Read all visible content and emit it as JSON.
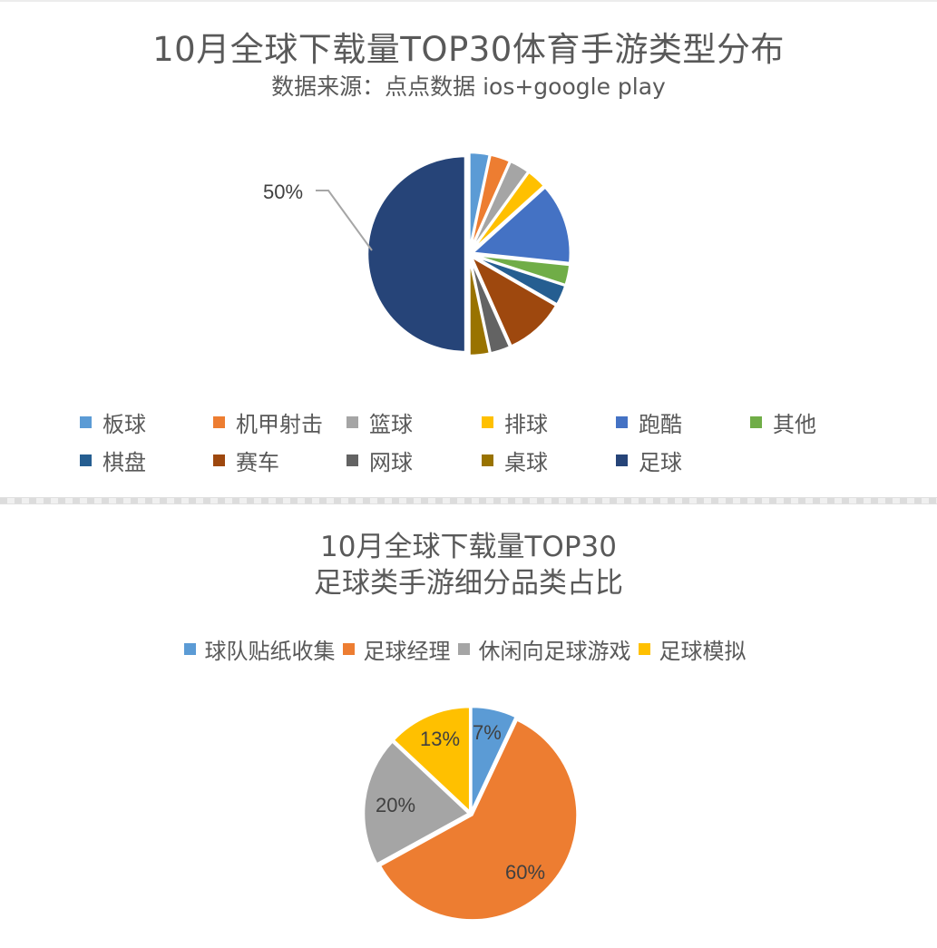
{
  "chart_data": [
    {
      "type": "pie",
      "title": "10月全球下载量TOP30体育手游类型分布",
      "subtitle": "数据来源：点点数据 ios+google play",
      "exploded": true,
      "start_angle_deg": 0,
      "direction": "clockwise",
      "categories": [
        "板球",
        "机甲射击",
        "篮球",
        "排球",
        "跑酷",
        "其他",
        "棋盘",
        "赛车",
        "网球",
        "桌球",
        "足球"
      ],
      "values": [
        3.33,
        3.33,
        3.33,
        3.33,
        13.33,
        3.33,
        3.33,
        10,
        3.33,
        3.33,
        50
      ],
      "colors": [
        "#5B9BD5",
        "#ED7D31",
        "#A5A5A5",
        "#FFC000",
        "#4472C4",
        "#70AD47",
        "#255E91",
        "#9E480E",
        "#636363",
        "#997300",
        "#264478"
      ],
      "data_labels": [
        {
          "category": "足球",
          "text": "50%"
        }
      ],
      "legend_position": "bottom"
    },
    {
      "type": "pie",
      "title": "10月全球下载量TOP30 足球类手游细分品类占比",
      "exploded": true,
      "start_angle_deg": 0,
      "direction": "clockwise",
      "categories": [
        "球队贴纸收集",
        "足球经理",
        "休闲向足球游戏",
        "足球模拟"
      ],
      "values": [
        7,
        60,
        20,
        13
      ],
      "colors": [
        "#5B9BD5",
        "#ED7D31",
        "#A5A5A5",
        "#FFC000"
      ],
      "data_labels": [
        "7%",
        "60%",
        "20%",
        "13%"
      ],
      "legend_position": "top"
    }
  ],
  "chart1": {
    "title": "10月全球下载量TOP30体育手游类型分布",
    "subtitle": "数据来源：点点数据 ios+google play",
    "callout_label": "50%",
    "legend": [
      {
        "label": "板球",
        "color": "#5B9BD5"
      },
      {
        "label": "机甲射击",
        "color": "#ED7D31"
      },
      {
        "label": "篮球",
        "color": "#A5A5A5"
      },
      {
        "label": "排球",
        "color": "#FFC000"
      },
      {
        "label": "跑酷",
        "color": "#4472C4"
      },
      {
        "label": "其他",
        "color": "#70AD47"
      },
      {
        "label": "棋盘",
        "color": "#255E91"
      },
      {
        "label": "赛车",
        "color": "#9E480E"
      },
      {
        "label": "网球",
        "color": "#636363"
      },
      {
        "label": "桌球",
        "color": "#997300"
      },
      {
        "label": "足球",
        "color": "#264478"
      }
    ]
  },
  "chart2": {
    "title_line1": "10月全球下载量TOP30",
    "title_line2": "足球类手游细分品类占比",
    "legend": [
      {
        "label": "球队贴纸收集",
        "color": "#5B9BD5"
      },
      {
        "label": "足球经理",
        "color": "#ED7D31"
      },
      {
        "label": "休闲向足球游戏",
        "color": "#A5A5A5"
      },
      {
        "label": "足球模拟",
        "color": "#FFC000"
      }
    ],
    "labels": {
      "s0": "7%",
      "s1": "60%",
      "s2": "20%",
      "s3": "13%"
    }
  }
}
